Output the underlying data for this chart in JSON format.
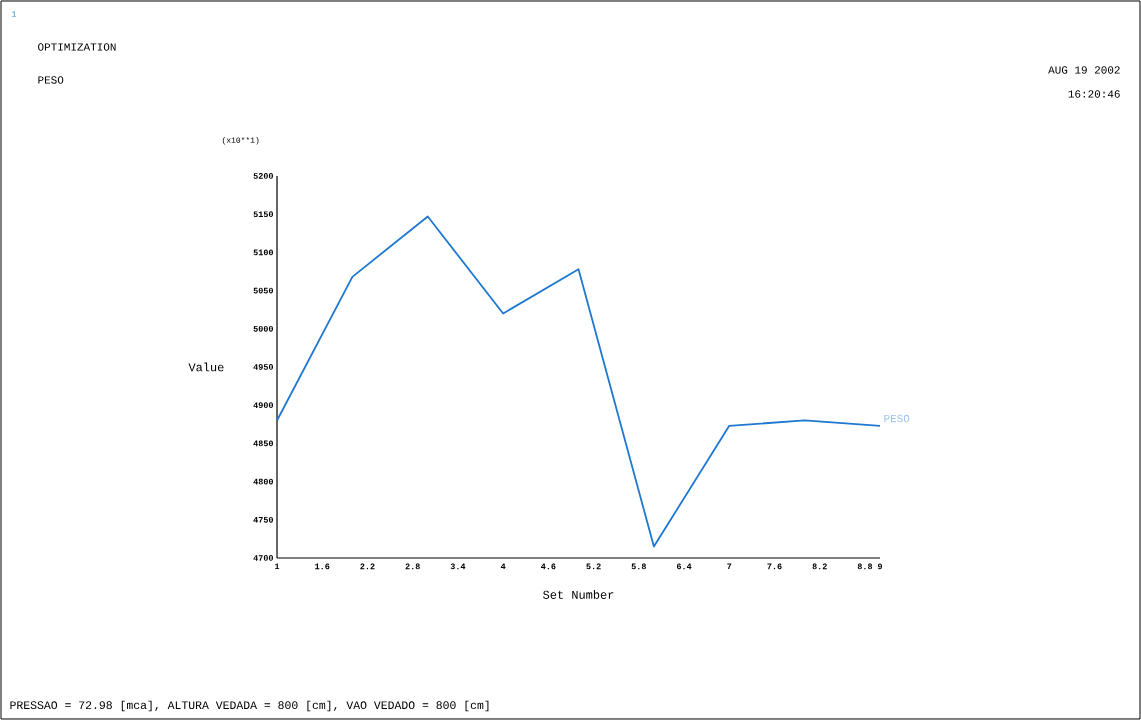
{
  "chart_data": {
    "type": "line",
    "title": "OPTIMIZATION",
    "subtitle": "PESO",
    "xlabel": "Set Number",
    "ylabel": "Value",
    "x": [
      1,
      2,
      3,
      4,
      5,
      6,
      7,
      8,
      9
    ],
    "series": [
      {
        "name": "PESO",
        "color": "#1f78d0",
        "values": [
          4880,
          5068,
          5147,
          5020,
          5078,
          4715,
          4873,
          4880,
          4873
        ]
      }
    ],
    "xlim": [
      1,
      9
    ],
    "xticks": [
      1,
      1.6,
      2.2,
      2.8,
      3.4,
      4,
      4.6,
      5.2,
      5.8,
      6.4,
      7,
      7.6,
      8.2,
      8.8,
      9
    ],
    "ylim": [
      4700,
      5200
    ],
    "yticks": [
      4700,
      4750,
      4800,
      4850,
      4900,
      4950,
      5000,
      5050,
      5100,
      5150,
      5200
    ],
    "grid": false,
    "marker": "none",
    "line_style": "solid",
    "annotations": [
      "(x10**1)",
      "1",
      "AUG 19 2002",
      "16:20:46",
      "PRESSAO = 72.98 [mca],   ALTURA VEDADA = 800 [cm],   VAO VEDADO = 800 [cm]"
    ]
  }
}
